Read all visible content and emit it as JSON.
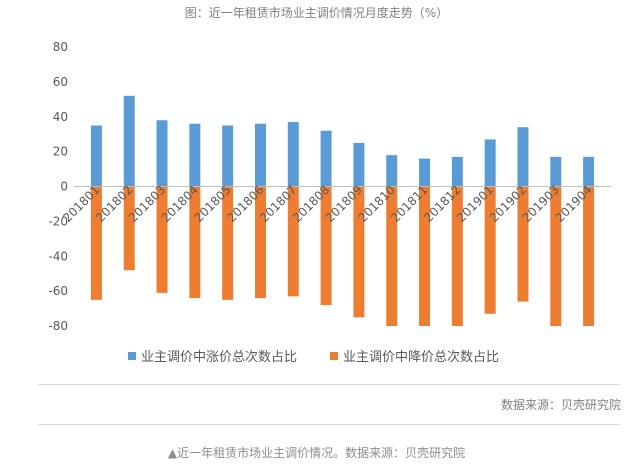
{
  "chart_data": {
    "type": "bar",
    "title": "图：近一年租赁市场业主调价情况月度走势（%）",
    "categories": [
      "201801",
      "201802",
      "201803",
      "201804",
      "201805",
      "201806",
      "201807",
      "201808",
      "201809",
      "201810",
      "201811",
      "201812",
      "201901",
      "201902",
      "201903",
      "201904"
    ],
    "series": [
      {
        "name": "业主调价中涨价总次数占比",
        "color": "#5b9bd5",
        "values": [
          35,
          52,
          38,
          36,
          35,
          36,
          37,
          32,
          25,
          18,
          16,
          17,
          27,
          34,
          17,
          17
        ]
      },
      {
        "name": "业主调价中降价总次数占比",
        "color": "#ed7d31",
        "values": [
          -65,
          -48,
          -61,
          -64,
          -65,
          -64,
          -63,
          -68,
          -75,
          -80,
          -80,
          -80,
          -73,
          -66,
          -80,
          -80
        ]
      }
    ],
    "ylim": [
      -80,
      80
    ],
    "yticks": [
      -80,
      -60,
      -40,
      -20,
      0,
      20,
      40,
      60,
      80
    ],
    "grid": false,
    "legend_position": "bottom",
    "source": "数据来源：贝壳研究院"
  },
  "caption": "▲近一年租赁市场业主调价情况。数据来源：贝壳研究院"
}
